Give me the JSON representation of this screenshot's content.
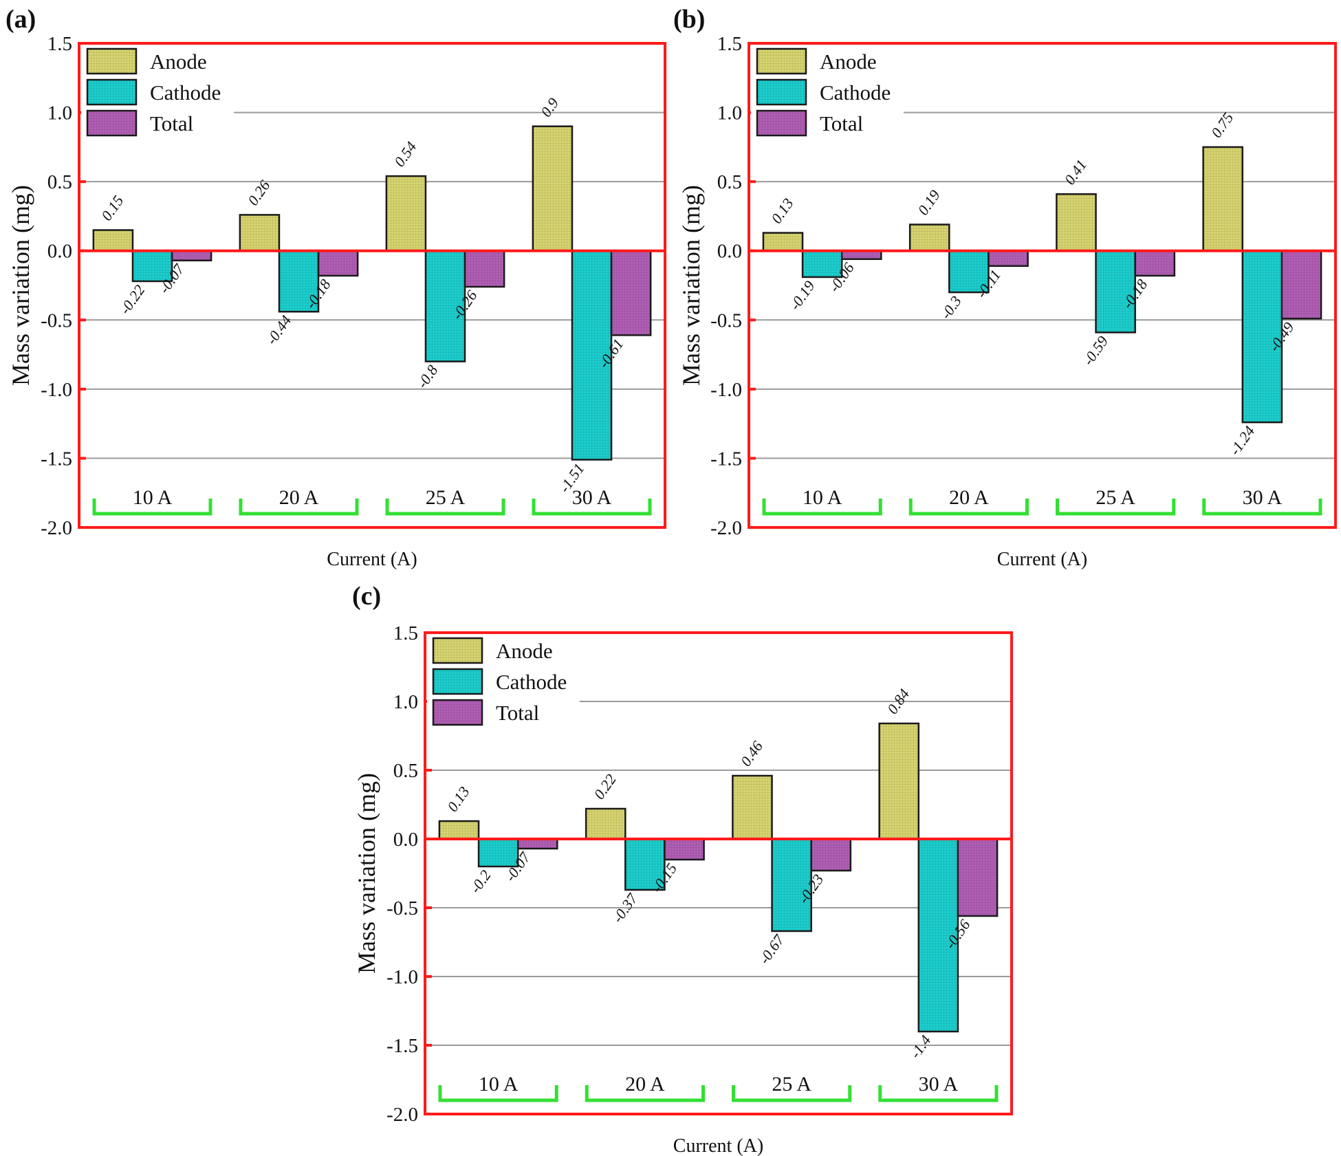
{
  "figure": {
    "colors": {
      "anode": "#d9d671",
      "cathode": "#1cd0cf",
      "total": "#b25fb6",
      "frame": "#ff1a1a",
      "grid": "#9a9a9a",
      "bracket": "#33e033",
      "bar_edge": "#1a1a1a"
    }
  },
  "chart_data": [
    {
      "panel": "(a)",
      "type": "bar",
      "title": "",
      "xlabel": "Current (A)",
      "ylabel": "Mass variation (mg)",
      "ylim": [
        -2.0,
        1.5
      ],
      "yticks": [
        "1.5",
        "1.0",
        "0.5",
        "0.0",
        "-0.5",
        "-1.0",
        "-1.5",
        "-2.0"
      ],
      "ytick_values": [
        1.5,
        1.0,
        0.5,
        0.0,
        -0.5,
        -1.0,
        -1.5,
        -2.0
      ],
      "grid": true,
      "legend_position": "top-left",
      "categories": [
        "10 A",
        "20 A",
        "25 A",
        "30 A"
      ],
      "series": [
        {
          "name": "Anode",
          "key": "anode",
          "values": [
            0.15,
            0.26,
            0.54,
            0.9
          ],
          "labels": [
            "0.15",
            "0.26",
            "0.54",
            "0.9"
          ]
        },
        {
          "name": "Cathode",
          "key": "cathode",
          "values": [
            -0.22,
            -0.44,
            -0.8,
            -1.51
          ],
          "labels": [
            "-0.22",
            "-0.44",
            "-0.8",
            "-1.51"
          ]
        },
        {
          "name": "Total",
          "key": "total",
          "values": [
            -0.07,
            -0.18,
            -0.26,
            -0.61
          ],
          "labels": [
            "-0.07",
            "-0.18",
            "-0.26",
            "-0.61"
          ]
        }
      ]
    },
    {
      "panel": "(b)",
      "type": "bar",
      "title": "",
      "xlabel": "Current (A)",
      "ylabel": "Mass variation (mg)",
      "ylim": [
        -2.0,
        1.5
      ],
      "yticks": [
        "1.5",
        "1.0",
        "0.5",
        "0.0",
        "-0.5",
        "-1.0",
        "-1.5",
        "-2.0"
      ],
      "ytick_values": [
        1.5,
        1.0,
        0.5,
        0.0,
        -0.5,
        -1.0,
        -1.5,
        -2.0
      ],
      "grid": true,
      "legend_position": "top-left",
      "categories": [
        "10 A",
        "20 A",
        "25 A",
        "30 A"
      ],
      "series": [
        {
          "name": "Anode",
          "key": "anode",
          "values": [
            0.13,
            0.19,
            0.41,
            0.75
          ],
          "labels": [
            "0.13",
            "0.19",
            "0.41",
            "0.75"
          ]
        },
        {
          "name": "Cathode",
          "key": "cathode",
          "values": [
            -0.19,
            -0.3,
            -0.59,
            -1.24
          ],
          "labels": [
            "-0.19",
            "-0.3",
            "-0.59",
            "-1.24"
          ]
        },
        {
          "name": "Total",
          "key": "total",
          "values": [
            -0.06,
            -0.11,
            -0.18,
            -0.49
          ],
          "labels": [
            "-0.06",
            "-0.11",
            "-0.18",
            "-0.49"
          ]
        }
      ]
    },
    {
      "panel": "(c)",
      "type": "bar",
      "title": "",
      "xlabel": "Current (A)",
      "ylabel": "Mass variation (mg)",
      "ylim": [
        -2.0,
        1.5
      ],
      "yticks": [
        "1.5",
        "1.0",
        "0.5",
        "0.0",
        "-0.5",
        "-1.0",
        "-1.5",
        "-2.0"
      ],
      "ytick_values": [
        1.5,
        1.0,
        0.5,
        0.0,
        -0.5,
        -1.0,
        -1.5,
        -2.0
      ],
      "grid": true,
      "legend_position": "top-left",
      "categories": [
        "10 A",
        "20 A",
        "25 A",
        "30 A"
      ],
      "series": [
        {
          "name": "Anode",
          "key": "anode",
          "values": [
            0.13,
            0.22,
            0.46,
            0.84
          ],
          "labels": [
            "0.13",
            "0.22",
            "0.46",
            "0.84"
          ]
        },
        {
          "name": "Cathode",
          "key": "cathode",
          "values": [
            -0.2,
            -0.37,
            -0.67,
            -1.4
          ],
          "labels": [
            "-0.2",
            "-0.37",
            "-0.67",
            "-1.4"
          ]
        },
        {
          "name": "Total",
          "key": "total",
          "values": [
            -0.07,
            -0.15,
            -0.23,
            -0.56
          ],
          "labels": [
            "-0.07",
            "-0.15",
            "-0.23",
            "-0.56"
          ]
        }
      ]
    }
  ]
}
